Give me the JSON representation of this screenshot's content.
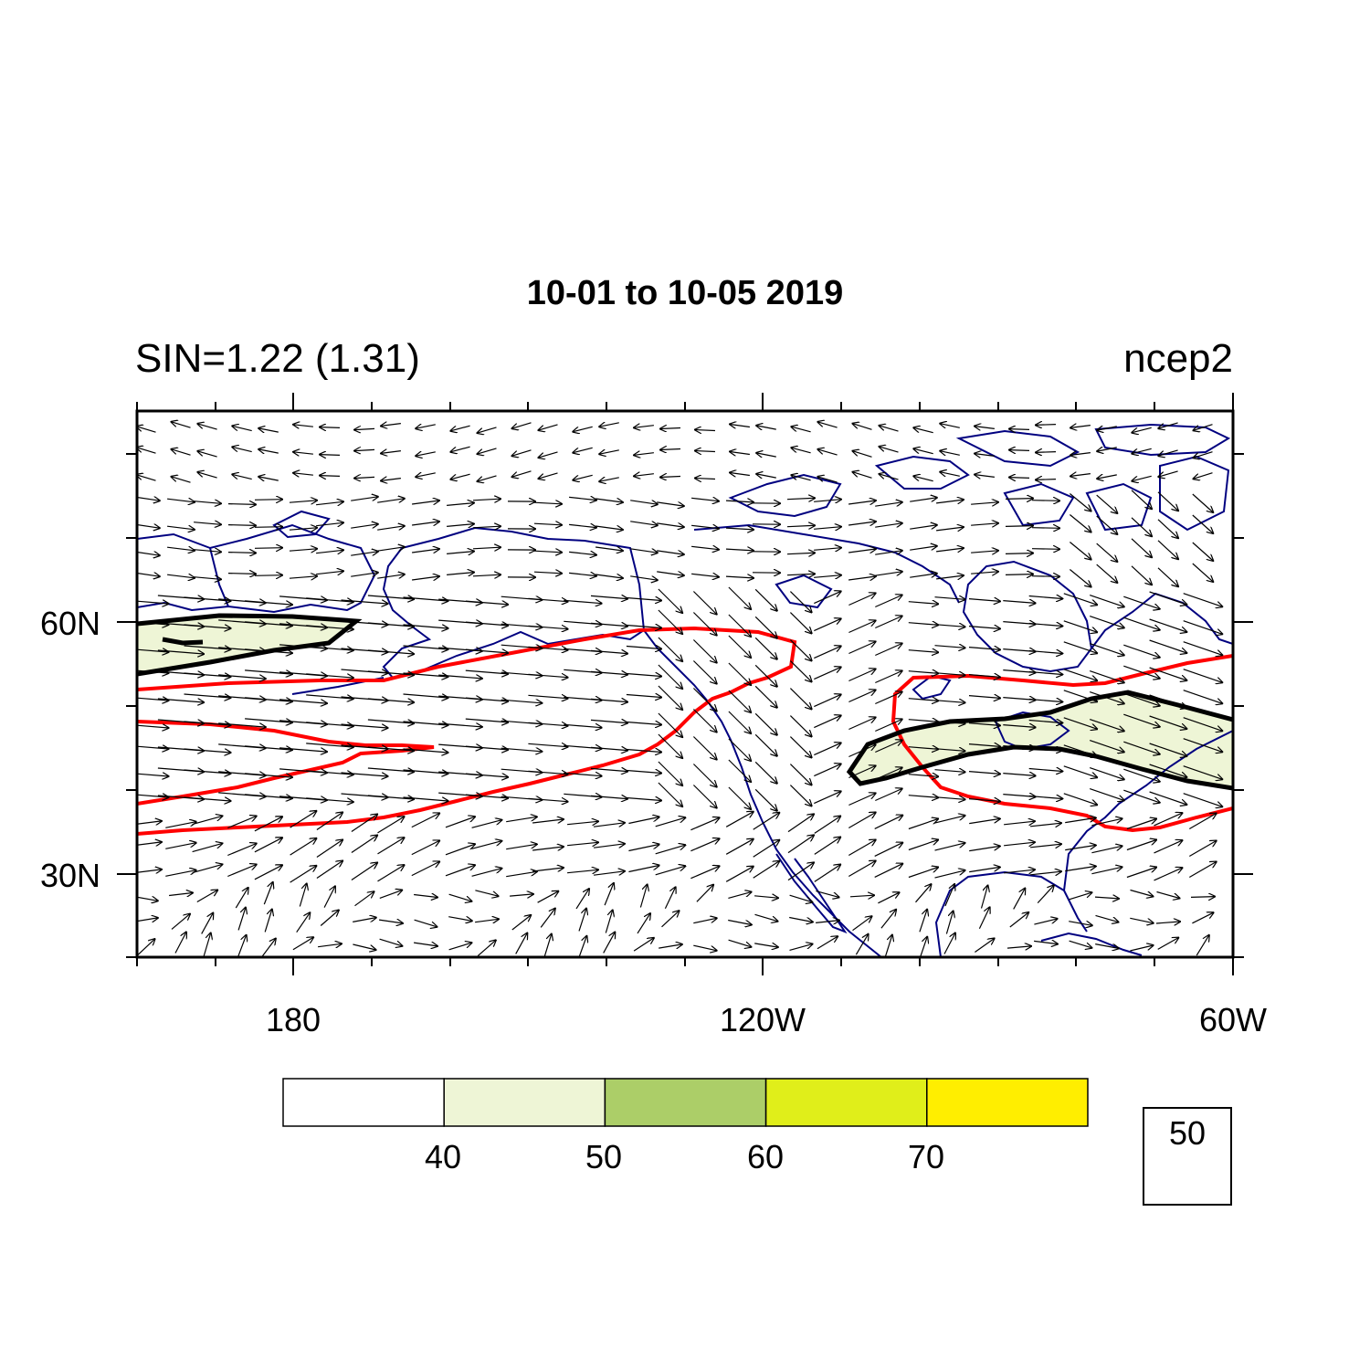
{
  "title": "10-01 to 10-05 2019",
  "left_string": "SIN=1.22 (1.31)",
  "right_string": "ncep2",
  "lat_labels": [
    "60N",
    "30N"
  ],
  "lon_labels": [
    "180",
    "120W",
    "60W"
  ],
  "colorbar": {
    "labels": [
      "40",
      "50",
      "60",
      "70"
    ],
    "colors": [
      "#ffffff",
      "#eef5d6",
      "#acce68",
      "#e0ee1a",
      "#ffee00"
    ]
  },
  "vector_reference": {
    "magnitude": "50"
  },
  "colors": {
    "coastline": "#000080",
    "red_contour": "#ff0000",
    "black_contour": "#000000",
    "shading": "#eef5d6"
  },
  "chart_data": {
    "type": "map-contour-vector",
    "region": {
      "lon_range": [
        "160E",
        "60W"
      ],
      "lat_range": [
        "20N",
        "85N"
      ]
    },
    "shading_levels": [
      40,
      50,
      60,
      70
    ],
    "vector_reference_magnitude": 50
  }
}
